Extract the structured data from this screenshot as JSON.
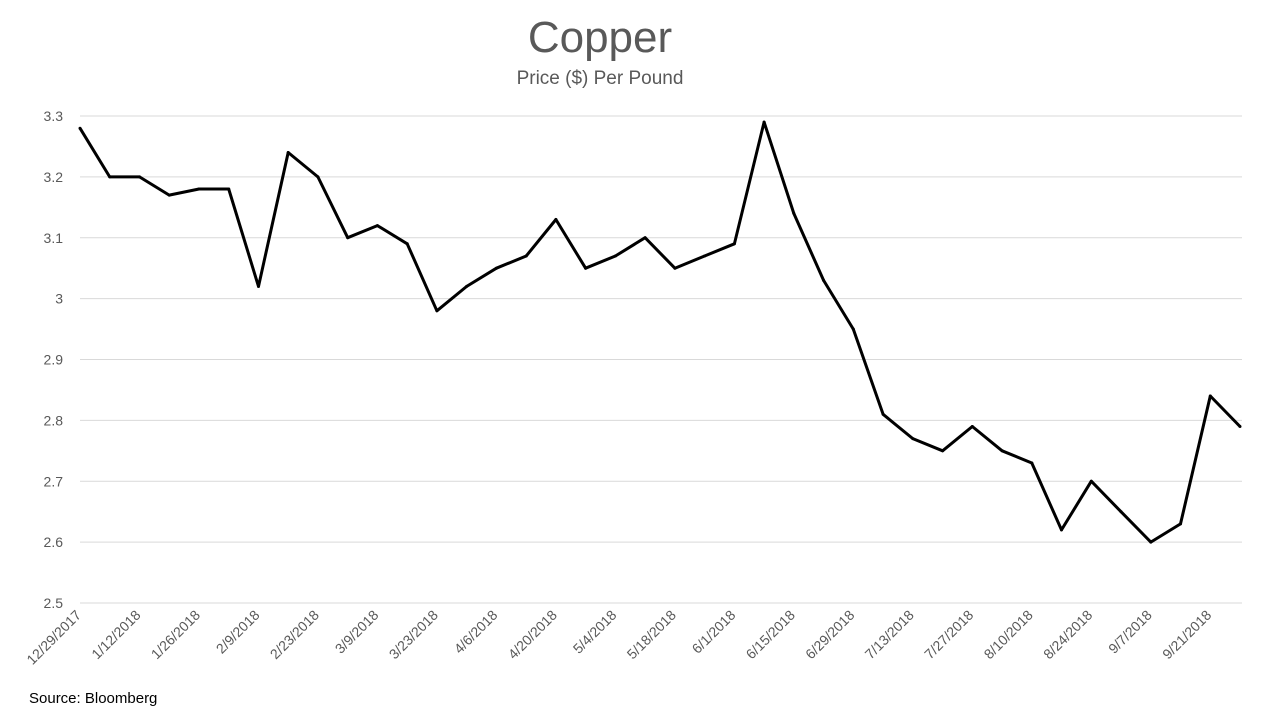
{
  "chart_data": {
    "type": "line",
    "title": "Copper",
    "subtitle": "Price ($) Per Pound",
    "source": "Source: Bloomberg",
    "grid": true,
    "legend": "none",
    "ylim": [
      2.5,
      3.3
    ],
    "yticks": [
      {
        "value": 3.3,
        "label": "3.3"
      },
      {
        "value": 3.2,
        "label": "3.2"
      },
      {
        "value": 3.1,
        "label": "3.1"
      },
      {
        "value": 3.0,
        "label": "3"
      },
      {
        "value": 2.9,
        "label": "2.9"
      },
      {
        "value": 2.8,
        "label": "2.8"
      },
      {
        "value": 2.7,
        "label": "2.7"
      },
      {
        "value": 2.6,
        "label": "2.6"
      },
      {
        "value": 2.5,
        "label": "2.5"
      }
    ],
    "x": [
      "12/29/2017",
      "1/5/2018",
      "1/12/2018",
      "1/19/2018",
      "1/26/2018",
      "2/2/2018",
      "2/9/2018",
      "2/16/2018",
      "2/23/2018",
      "3/2/2018",
      "3/9/2018",
      "3/16/2018",
      "3/23/2018",
      "3/30/2018",
      "4/6/2018",
      "4/13/2018",
      "4/20/2018",
      "4/27/2018",
      "5/4/2018",
      "5/11/2018",
      "5/18/2018",
      "5/25/2018",
      "6/1/2018",
      "6/8/2018",
      "6/15/2018",
      "6/22/2018",
      "6/29/2018",
      "7/6/2018",
      "7/13/2018",
      "7/20/2018",
      "7/27/2018",
      "8/3/2018",
      "8/10/2018",
      "8/17/2018",
      "8/24/2018",
      "8/31/2018",
      "9/7/2018",
      "9/14/2018",
      "9/21/2018",
      "9/28/2018"
    ],
    "xtick_labels": [
      "12/29/2017",
      "1/12/2018",
      "1/26/2018",
      "2/9/2018",
      "2/23/2018",
      "3/9/2018",
      "3/23/2018",
      "4/6/2018",
      "4/20/2018",
      "5/4/2018",
      "5/18/2018",
      "6/1/2018",
      "6/15/2018",
      "6/29/2018",
      "7/13/2018",
      "7/27/2018",
      "8/10/2018",
      "8/24/2018",
      "9/7/2018",
      "9/21/2018"
    ],
    "series": [
      {
        "values": [
          3.28,
          3.2,
          3.2,
          3.17,
          3.18,
          3.18,
          3.02,
          3.24,
          3.2,
          3.1,
          3.12,
          3.09,
          2.98,
          3.02,
          3.05,
          3.07,
          3.13,
          3.05,
          3.07,
          3.1,
          3.05,
          3.07,
          3.09,
          3.29,
          3.14,
          3.03,
          2.95,
          2.81,
          2.77,
          2.75,
          2.79,
          2.75,
          2.73,
          2.62,
          2.7,
          2.65,
          2.6,
          2.63,
          2.84,
          2.79
        ],
        "color": "#000000"
      }
    ]
  }
}
